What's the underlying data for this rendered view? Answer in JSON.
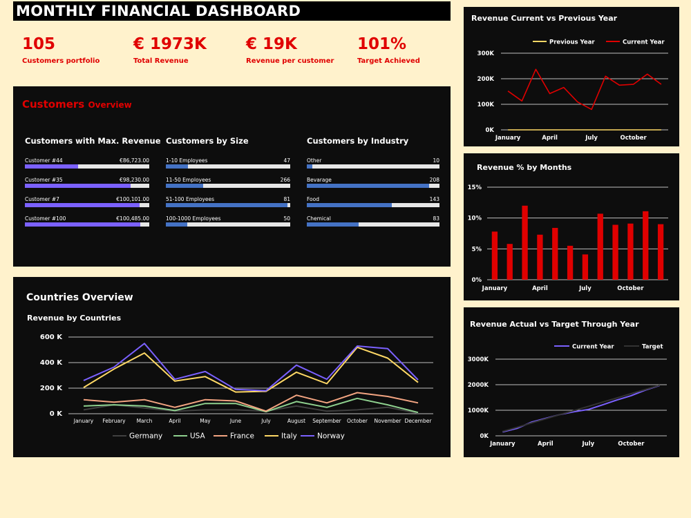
{
  "title": "MONTHLY FINANCIAL DASHBOARD",
  "colors": {
    "accent": "#e00000",
    "purple": "#7b61ff",
    "blue": "#4472c4",
    "yellow": "#ffd966"
  },
  "kpis": [
    {
      "value": "105",
      "label": "Customers portfolio"
    },
    {
      "value": "€ 1973K",
      "label": "Total Revenue"
    },
    {
      "value": "€ 19K",
      "label": "Revenue per customer"
    },
    {
      "value": "101%",
      "label": "Target Achieved"
    }
  ],
  "customers": {
    "title": "Customers",
    "subtitle": "Overview",
    "max_revenue": {
      "heading": "Customers with Max. Revenue",
      "items": [
        {
          "label": "Customer #44",
          "value": "€86,723.00",
          "fraction": 0.43
        },
        {
          "label": "Customer #35",
          "value": "€98,230.00",
          "fraction": 0.85
        },
        {
          "label": "Customer #7",
          "value": "€100,101.00",
          "fraction": 0.92
        },
        {
          "label": "Customer #100",
          "value": "€100,485.00",
          "fraction": 0.93
        }
      ]
    },
    "by_size": {
      "heading": "Customers by Size",
      "items": [
        {
          "label": "1-10 Employees",
          "value": "47",
          "fraction": 0.18
        },
        {
          "label": "11-50 Employees",
          "value": "266",
          "fraction": 0.3
        },
        {
          "label": "51-100 Employees",
          "value": "81",
          "fraction": 0.98
        },
        {
          "label": "100-1000 Employees",
          "value": "50",
          "fraction": 0.17
        }
      ]
    },
    "by_industry": {
      "heading": "Customers by Industry",
      "items": [
        {
          "label": "Other",
          "value": "10",
          "fraction": 0.04
        },
        {
          "label": "Bevarage",
          "value": "208",
          "fraction": 0.92
        },
        {
          "label": "Food",
          "value": "143",
          "fraction": 0.64
        },
        {
          "label": "Chemical",
          "value": "83",
          "fraction": 0.39
        }
      ]
    }
  },
  "countries": {
    "title": "Countries Overview"
  },
  "chart_data": [
    {
      "id": "countries",
      "type": "line",
      "title": "Revenue by Countries",
      "categories": [
        "January",
        "February",
        "March",
        "April",
        "May",
        "June",
        "July",
        "August",
        "September",
        "October",
        "November",
        "December"
      ],
      "yticks": [
        "0 K",
        "200 K",
        "400 K",
        "600 K"
      ],
      "ylim": [
        0,
        600000
      ],
      "grid": true,
      "legend": "bottom",
      "series": [
        {
          "name": "Germany",
          "color": "#404040",
          "values": [
            30000,
            70000,
            45000,
            20000,
            30000,
            30000,
            20000,
            60000,
            20000,
            30000,
            50000,
            5000
          ]
        },
        {
          "name": "USA",
          "color": "#8fd18f",
          "values": [
            60000,
            70000,
            60000,
            25000,
            80000,
            80000,
            15000,
            95000,
            50000,
            120000,
            70000,
            10000
          ]
        },
        {
          "name": "France",
          "color": "#f4a582",
          "values": [
            110000,
            90000,
            110000,
            50000,
            110000,
            100000,
            20000,
            145000,
            85000,
            165000,
            135000,
            85000
          ]
        },
        {
          "name": "Italy",
          "color": "#ffd966",
          "values": [
            205000,
            350000,
            475000,
            255000,
            290000,
            170000,
            175000,
            325000,
            235000,
            520000,
            435000,
            245000
          ]
        },
        {
          "name": "Norway",
          "color": "#7b61ff",
          "values": [
            260000,
            365000,
            550000,
            270000,
            330000,
            190000,
            180000,
            380000,
            270000,
            530000,
            510000,
            265000
          ]
        }
      ]
    },
    {
      "id": "prev",
      "type": "line",
      "title": "Revenue Current vs Previous Year",
      "categories": [
        "January",
        "February",
        "March",
        "April",
        "May",
        "June",
        "July",
        "August",
        "September",
        "October",
        "November",
        "December"
      ],
      "xticklabels": [
        "January",
        "",
        "",
        "April",
        "",
        "",
        "July",
        "",
        "",
        "October",
        "",
        ""
      ],
      "yticks": [
        "0K",
        "100K",
        "200K",
        "300K"
      ],
      "ylim": [
        0,
        300000
      ],
      "grid": true,
      "legend": "top",
      "series": [
        {
          "name": "Previous Year",
          "color": "#ffd966",
          "values": [
            0,
            0,
            0,
            0,
            0,
            0,
            0,
            0,
            0,
            0,
            0,
            0
          ]
        },
        {
          "name": "Current Year",
          "color": "#e00000",
          "values": [
            152000,
            113000,
            237000,
            142000,
            166000,
            109000,
            80000,
            210000,
            175000,
            178000,
            218000,
            178000
          ]
        }
      ]
    },
    {
      "id": "pct",
      "type": "bar",
      "title": "Revenue % by Months",
      "categories": [
        "January",
        "February",
        "March",
        "April",
        "May",
        "June",
        "July",
        "August",
        "September",
        "October",
        "November",
        "December"
      ],
      "xticklabels": [
        "January",
        "",
        "",
        "April",
        "",
        "",
        "July",
        "",
        "",
        "October",
        "",
        ""
      ],
      "yticks": [
        "0%",
        "5%",
        "10%",
        "15%"
      ],
      "ylim": [
        0,
        15
      ],
      "grid": true,
      "series": [
        {
          "name": "",
          "color": "#e00000",
          "values": [
            7.8,
            5.8,
            12.0,
            7.3,
            8.4,
            5.5,
            4.1,
            10.7,
            8.9,
            9.1,
            11.1,
            9.0
          ]
        }
      ]
    },
    {
      "id": "target",
      "type": "line",
      "title": "Revenue Actual vs Target Through Year",
      "categories": [
        "January",
        "February",
        "March",
        "April",
        "May",
        "June",
        "July",
        "August",
        "September",
        "October",
        "November",
        "December"
      ],
      "xticklabels": [
        "January",
        "",
        "",
        "April",
        "",
        "",
        "July",
        "",
        "",
        "October",
        "",
        ""
      ],
      "yticks": [
        "0K",
        "1000K",
        "2000K",
        "3000K"
      ],
      "ylim": [
        0,
        3000000
      ],
      "grid": true,
      "legend": "top",
      "series": [
        {
          "name": "Current Year",
          "color": "#7b61ff",
          "values": [
            150000,
            290000,
            530000,
            680000,
            830000,
            940000,
            1030000,
            1210000,
            1400000,
            1570000,
            1790000,
            1973000
          ]
        },
        {
          "name": "Target",
          "color": "#333333",
          "values": [
            170000,
            330000,
            500000,
            660000,
            830000,
            990000,
            1150000,
            1320000,
            1480000,
            1650000,
            1810000,
            1980000
          ]
        }
      ]
    }
  ]
}
